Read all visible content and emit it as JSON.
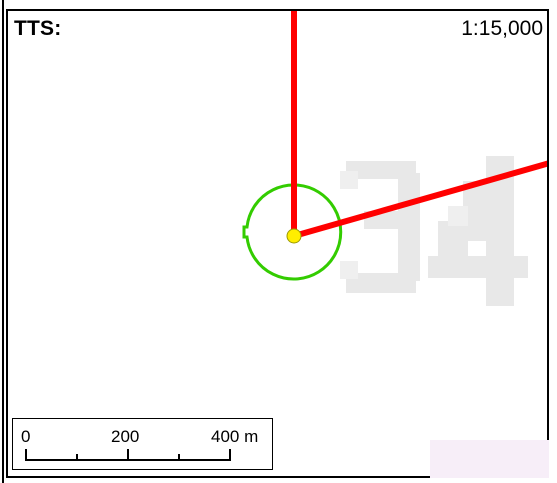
{
  "map": {
    "title_label": "TTS:",
    "scale_ratio": "1:15,000",
    "background_label": "34",
    "scalebar": {
      "ticks": [
        "0",
        "200",
        "400 m"
      ]
    },
    "colors": {
      "route_line": "#ff0000",
      "radius_circle": "#33cc00",
      "center_point": "#ffee00",
      "watermark_digits": "#e6e6e6"
    },
    "icons": {
      "center_point": "yellow-dot-marker"
    }
  }
}
